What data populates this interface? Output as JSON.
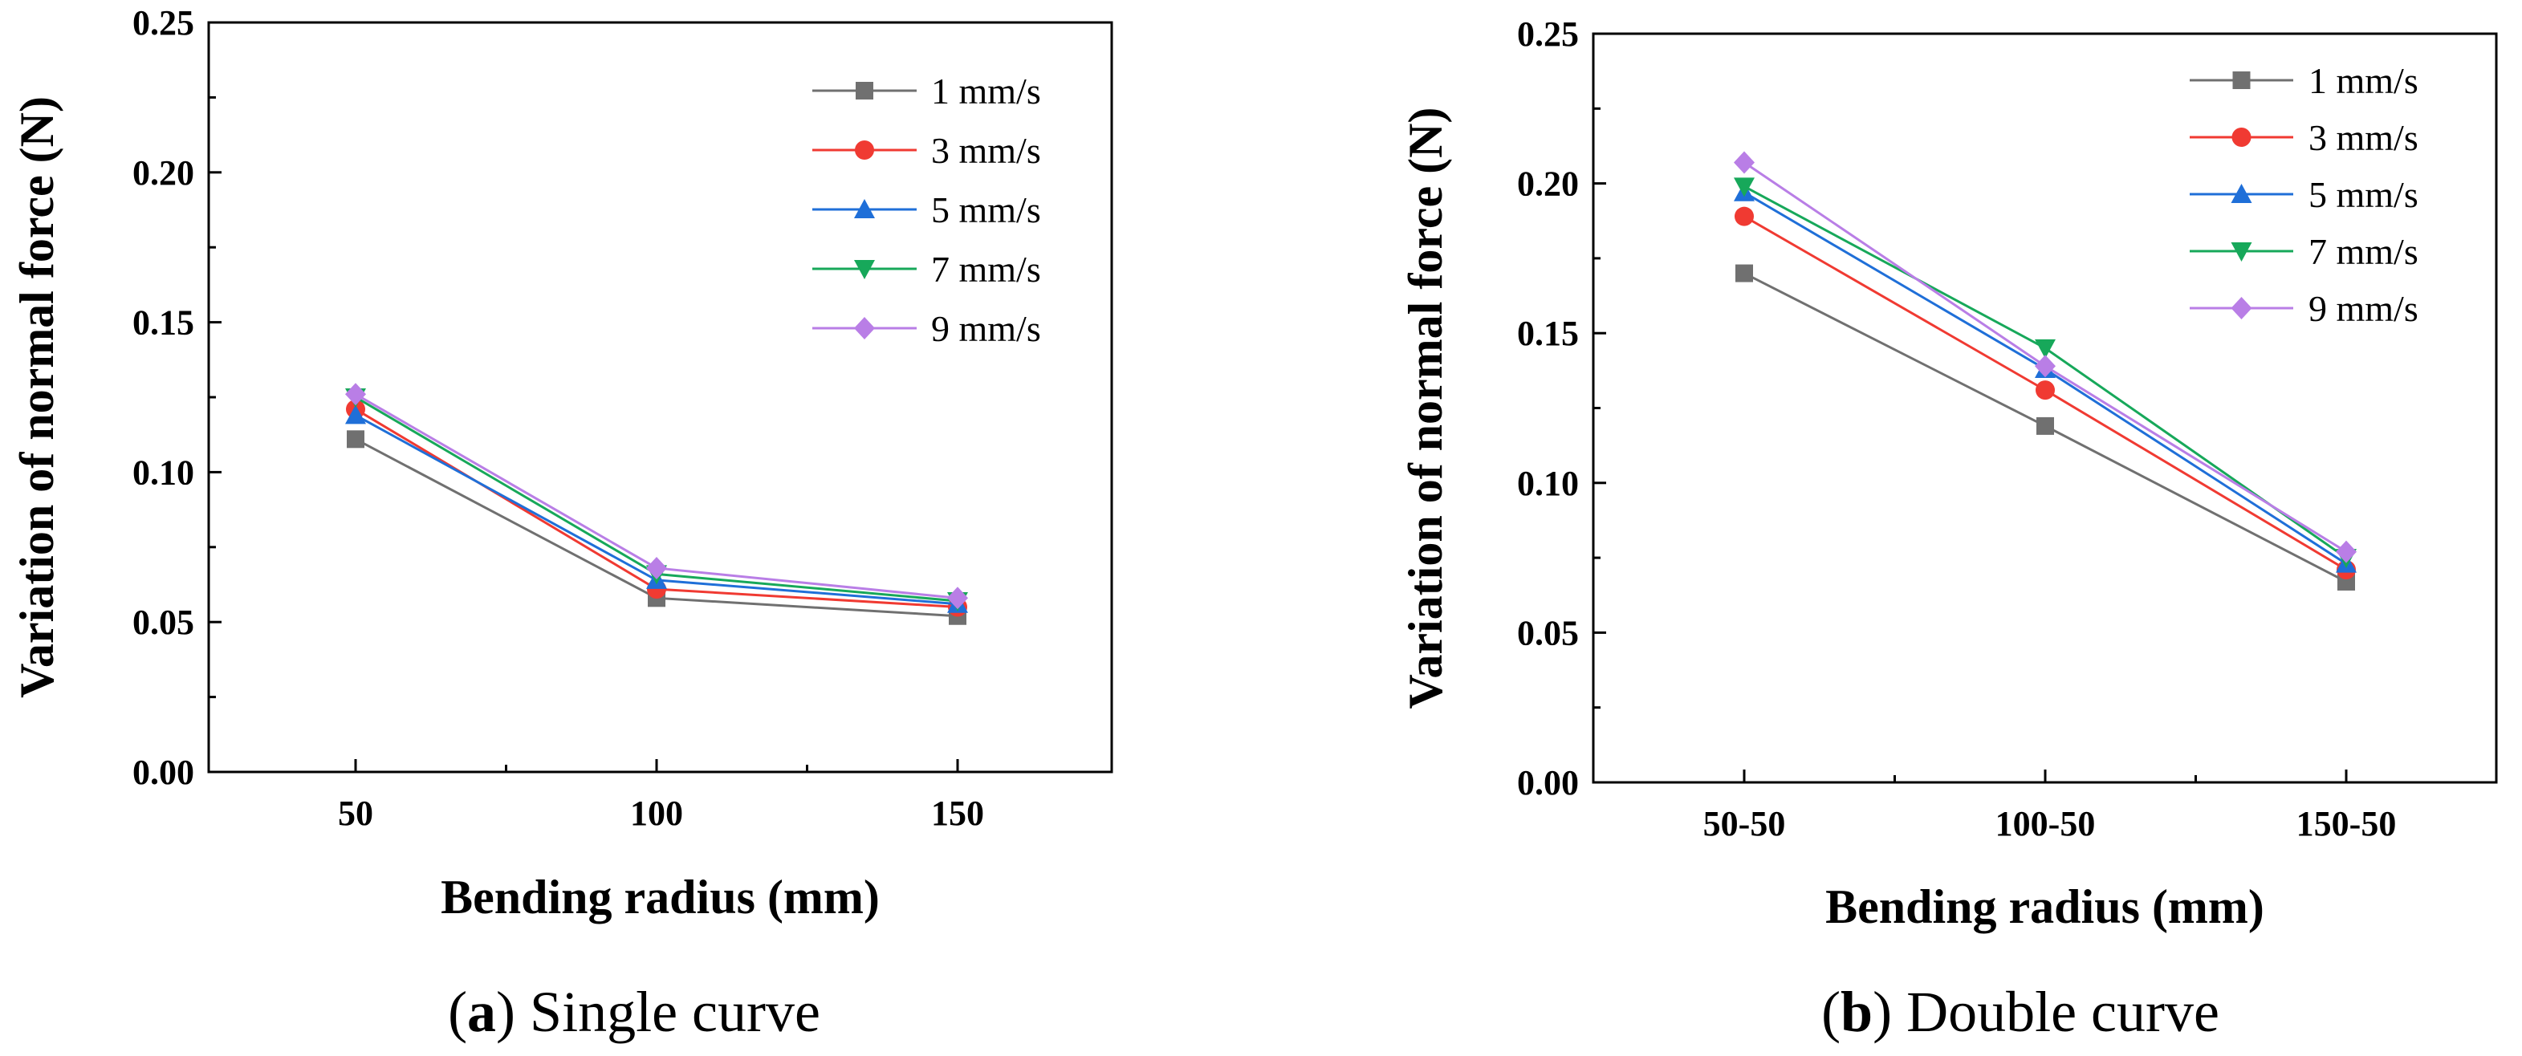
{
  "chart_data": [
    {
      "type": "line",
      "caption": {
        "open": "(",
        "letter": "a",
        "close": ")",
        "text": " Single curve"
      },
      "xlabel": "Bending radius (mm)",
      "ylabel": "Variation  of normal force (N)",
      "categories": [
        "50",
        "100",
        "150"
      ],
      "ylim": [
        0,
        0.25
      ],
      "yticks": [
        "0.00",
        "0.05",
        "0.10",
        "0.15",
        "0.20",
        "0.25"
      ],
      "legend_position": "top-right",
      "series": [
        {
          "name": "1 mm/s",
          "color": "#707070",
          "marker": "square",
          "values": [
            0.111,
            0.058,
            0.052
          ]
        },
        {
          "name": "3 mm/s",
          "color": "#f03a32",
          "marker": "circle",
          "values": [
            0.121,
            0.061,
            0.055
          ]
        },
        {
          "name": "5 mm/s",
          "color": "#1f6fd8",
          "marker": "triangle-up",
          "values": [
            0.119,
            0.064,
            0.056
          ]
        },
        {
          "name": "7 mm/s",
          "color": "#17a85a",
          "marker": "triangle-down",
          "values": [
            0.125,
            0.066,
            0.057
          ]
        },
        {
          "name": "9 mm/s",
          "color": "#b97ee6",
          "marker": "diamond",
          "values": [
            0.126,
            0.068,
            0.058
          ]
        }
      ]
    },
    {
      "type": "line",
      "caption": {
        "open": "(",
        "letter": "b",
        "close": ")",
        "text": " Double curve"
      },
      "xlabel": "Bending radius (mm)",
      "ylabel": "Variation of normal force (N)",
      "categories": [
        "50-50",
        "100-50",
        "150-50"
      ],
      "ylim": [
        0,
        0.25
      ],
      "yticks": [
        "0.00",
        "0.05",
        "0.10",
        "0.15",
        "0.20",
        "0.25"
      ],
      "legend_position": "top-right",
      "series": [
        {
          "name": "1 mm/s",
          "color": "#707070",
          "marker": "square",
          "values": [
            0.17,
            0.119,
            0.067
          ]
        },
        {
          "name": "3 mm/s",
          "color": "#f03a32",
          "marker": "circle",
          "values": [
            0.189,
            0.131,
            0.071
          ]
        },
        {
          "name": "5 mm/s",
          "color": "#1f6fd8",
          "marker": "triangle-up",
          "values": [
            0.197,
            0.138,
            0.073
          ]
        },
        {
          "name": "7 mm/s",
          "color": "#17a85a",
          "marker": "triangle-down",
          "values": [
            0.199,
            0.145,
            0.075
          ]
        },
        {
          "name": "9 mm/s",
          "color": "#b97ee6",
          "marker": "diamond",
          "values": [
            0.207,
            0.139,
            0.077
          ]
        }
      ]
    }
  ]
}
